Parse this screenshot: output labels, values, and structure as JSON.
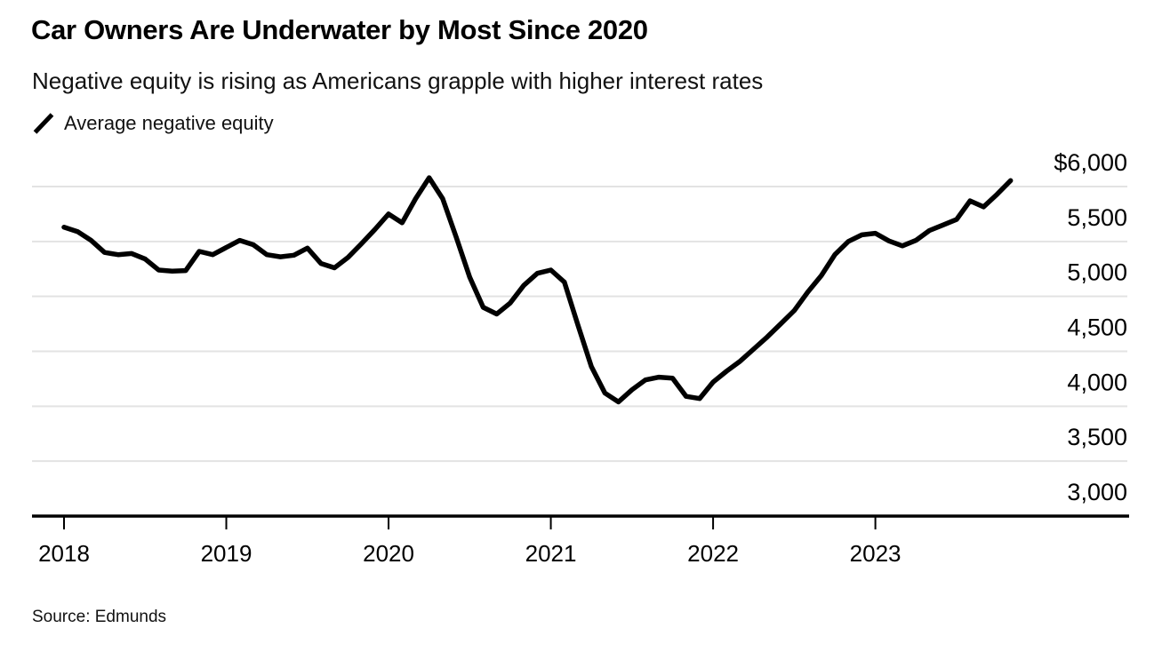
{
  "header": {
    "title": "Car Owners Are Underwater by Most Since 2020",
    "subtitle": "Negative equity is rising as Americans grapple with higher interest rates"
  },
  "legend": {
    "items": [
      {
        "label": "Average negative equity",
        "marker": "line-segment-icon",
        "color": "#000000"
      }
    ]
  },
  "source": {
    "text": "Source: Edmunds"
  },
  "colors": {
    "line": "#000000",
    "grid": "#e3e3e3",
    "axis": "#000000",
    "text": "#000000",
    "background": "#ffffff"
  },
  "chart_data": {
    "type": "line",
    "title": "Car Owners Are Underwater by Most Since 2020",
    "subtitle": "Negative equity is rising as Americans grapple with higher interest rates",
    "unit": "USD",
    "frequency": "monthly",
    "x_start": "2018-01",
    "x_end": "2023-11",
    "x_tick_labels": [
      "2018",
      "2019",
      "2020",
      "2021",
      "2022",
      "2023"
    ],
    "y_ticks": [
      6000,
      5500,
      5000,
      4500,
      4000,
      3500,
      3000
    ],
    "y_tick_labels": [
      "$6,000",
      "5,500",
      "5,000",
      "4,500",
      "4,000",
      "3,500",
      "3,000"
    ],
    "ylim": [
      3000,
      6100
    ],
    "grid": "horizontal",
    "y_axis_side": "right",
    "legend_position": "top-left",
    "source": "Source: Edmunds",
    "series": [
      {
        "name": "Average negative equity",
        "color": "#000000",
        "values": [
          5630,
          5590,
          5510,
          5400,
          5380,
          5390,
          5340,
          5240,
          5230,
          5235,
          5410,
          5380,
          5445,
          5510,
          5470,
          5380,
          5360,
          5375,
          5440,
          5300,
          5260,
          5355,
          5480,
          5610,
          5750,
          5670,
          5890,
          6080,
          5890,
          5540,
          5175,
          4900,
          4840,
          4940,
          5100,
          5210,
          5240,
          5130,
          4740,
          4360,
          4120,
          4040,
          4150,
          4240,
          4265,
          4255,
          4090,
          4070,
          4220,
          4320,
          4410,
          4520,
          4630,
          4750,
          4870,
          5040,
          5190,
          5380,
          5500,
          5560,
          5575,
          5505,
          5460,
          5510,
          5600,
          5650,
          5700,
          5870,
          5815,
          5930,
          6054
        ]
      }
    ]
  }
}
